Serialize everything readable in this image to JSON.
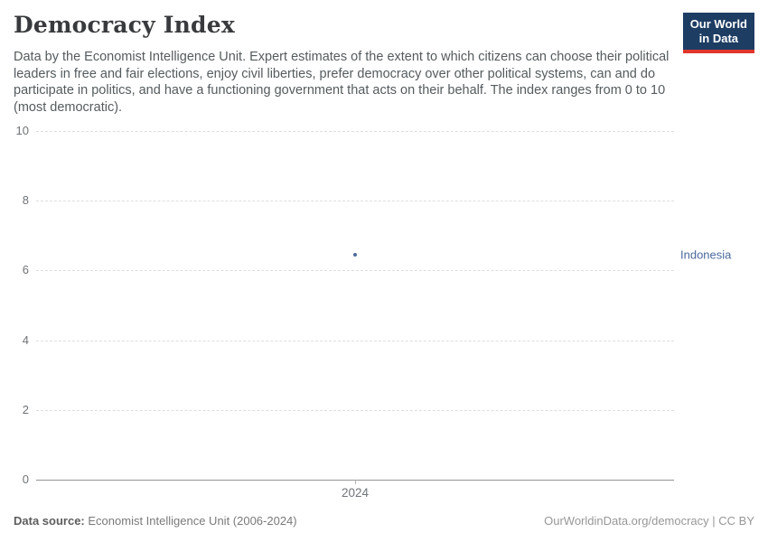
{
  "header": {
    "title": "Democracy Index",
    "subtitle": "Data by the Economist Intelligence Unit. Expert estimates of the extent to which citizens can choose their political leaders in free and fair elections, enjoy civil liberties, prefer democracy over other political systems, can and do participate in politics, and have a functioning government that acts on their behalf. The index ranges from 0 to 10 (most democratic).",
    "logo": {
      "line1": "Our World",
      "line2": "in Data",
      "bg_color": "#1d3d63",
      "bar_color": "#e0362c"
    }
  },
  "chart_data": {
    "type": "scatter",
    "title": "Democracy Index",
    "xlabel": "",
    "ylabel": "",
    "ylim": [
      0,
      10
    ],
    "yticks": [
      0,
      2,
      4,
      6,
      8,
      10
    ],
    "xticks": [
      "2024"
    ],
    "grid": "horizontal-dashed",
    "legend_position": "right-of-point",
    "series": [
      {
        "name": "Indonesia",
        "color": "#4c6a9c",
        "x": [
          2024
        ],
        "values": [
          6.44
        ]
      }
    ]
  },
  "footer": {
    "source_label": "Data source:",
    "source_value": "Economist Intelligence Unit (2006-2024)",
    "attribution": "OurWorldinData.org/democracy | CC BY"
  }
}
